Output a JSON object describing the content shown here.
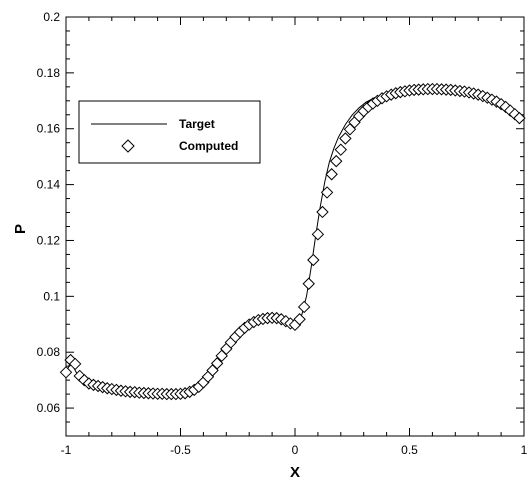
{
  "chart_data": {
    "type": "line",
    "title": "",
    "xlabel": "X",
    "ylabel": "P",
    "xlim": [
      -1,
      1
    ],
    "ylim": [
      0.05,
      0.2
    ],
    "xticks": [
      "-1",
      "-0.5",
      "0",
      "0.5",
      "1"
    ],
    "yticks": [
      "0.06",
      "0.08",
      "0.1",
      "0.12",
      "0.14",
      "0.16",
      "0.18",
      "0.2"
    ],
    "grid": false,
    "legend": {
      "placement": "upper-left",
      "box": true
    },
    "series": [
      {
        "name": "Target",
        "style": "line",
        "color": "#000000",
        "points": [
          [
            -1.0,
            0.0725
          ],
          [
            -0.98,
            0.0765
          ],
          [
            -0.96,
            0.0735
          ],
          [
            -0.94,
            0.0705
          ],
          [
            -0.92,
            0.069
          ],
          [
            -0.9,
            0.0682
          ],
          [
            -0.85,
            0.0672
          ],
          [
            -0.8,
            0.0665
          ],
          [
            -0.75,
            0.066
          ],
          [
            -0.7,
            0.0656
          ],
          [
            -0.65,
            0.0653
          ],
          [
            -0.6,
            0.0651
          ],
          [
            -0.55,
            0.065
          ],
          [
            -0.5,
            0.0651
          ],
          [
            -0.47,
            0.0655
          ],
          [
            -0.44,
            0.0665
          ],
          [
            -0.41,
            0.0685
          ],
          [
            -0.38,
            0.0715
          ],
          [
            -0.35,
            0.075
          ],
          [
            -0.32,
            0.079
          ],
          [
            -0.29,
            0.0825
          ],
          [
            -0.26,
            0.0858
          ],
          [
            -0.23,
            0.0882
          ],
          [
            -0.2,
            0.09
          ],
          [
            -0.17,
            0.0912
          ],
          [
            -0.14,
            0.092
          ],
          [
            -0.11,
            0.0923
          ],
          [
            -0.08,
            0.0922
          ],
          [
            -0.05,
            0.0916
          ],
          [
            -0.03,
            0.0908
          ],
          [
            -0.01,
            0.0902
          ],
          [
            0.01,
            0.0907
          ],
          [
            0.03,
            0.0935
          ],
          [
            0.05,
            0.1
          ],
          [
            0.07,
            0.11
          ],
          [
            0.09,
            0.1215
          ],
          [
            0.11,
            0.132
          ],
          [
            0.13,
            0.141
          ],
          [
            0.15,
            0.148
          ],
          [
            0.17,
            0.153
          ],
          [
            0.19,
            0.157
          ],
          [
            0.22,
            0.1615
          ],
          [
            0.25,
            0.165
          ],
          [
            0.28,
            0.1675
          ],
          [
            0.31,
            0.1695
          ],
          [
            0.35,
            0.1712
          ],
          [
            0.4,
            0.1725
          ],
          [
            0.45,
            0.1733
          ],
          [
            0.5,
            0.1738
          ],
          [
            0.55,
            0.1741
          ],
          [
            0.6,
            0.1742
          ],
          [
            0.65,
            0.1741
          ],
          [
            0.7,
            0.1738
          ],
          [
            0.75,
            0.1733
          ],
          [
            0.8,
            0.1725
          ],
          [
            0.85,
            0.1713
          ],
          [
            0.9,
            0.1695
          ],
          [
            0.95,
            0.1668
          ],
          [
            0.98,
            0.164
          ]
        ]
      },
      {
        "name": "Computed",
        "style": "diamond-marker",
        "color": "#000000",
        "points": [
          [
            -1.0,
            0.0728
          ],
          [
            -0.98,
            0.0772
          ],
          [
            -0.96,
            0.0758
          ],
          [
            -0.94,
            0.0715
          ],
          [
            -0.92,
            0.07
          ],
          [
            -0.9,
            0.0688
          ],
          [
            -0.88,
            0.0683
          ],
          [
            -0.86,
            0.0679
          ],
          [
            -0.84,
            0.0675
          ],
          [
            -0.82,
            0.0671
          ],
          [
            -0.8,
            0.0668
          ],
          [
            -0.78,
            0.0665
          ],
          [
            -0.76,
            0.0662
          ],
          [
            -0.74,
            0.066
          ],
          [
            -0.72,
            0.0658
          ],
          [
            -0.7,
            0.0657
          ],
          [
            -0.68,
            0.0655
          ],
          [
            -0.66,
            0.0654
          ],
          [
            -0.64,
            0.0653
          ],
          [
            -0.62,
            0.0652
          ],
          [
            -0.6,
            0.0651
          ],
          [
            -0.58,
            0.0651
          ],
          [
            -0.56,
            0.065
          ],
          [
            -0.54,
            0.065
          ],
          [
            -0.52,
            0.065
          ],
          [
            -0.5,
            0.0651
          ],
          [
            -0.48,
            0.0653
          ],
          [
            -0.46,
            0.0658
          ],
          [
            -0.44,
            0.0665
          ],
          [
            -0.42,
            0.0676
          ],
          [
            -0.4,
            0.0692
          ],
          [
            -0.38,
            0.0712
          ],
          [
            -0.36,
            0.0735
          ],
          [
            -0.34,
            0.076
          ],
          [
            -0.32,
            0.0787
          ],
          [
            -0.3,
            0.0812
          ],
          [
            -0.28,
            0.0835
          ],
          [
            -0.26,
            0.0855
          ],
          [
            -0.24,
            0.0872
          ],
          [
            -0.22,
            0.0887
          ],
          [
            -0.2,
            0.0899
          ],
          [
            -0.18,
            0.0908
          ],
          [
            -0.16,
            0.0915
          ],
          [
            -0.14,
            0.0919
          ],
          [
            -0.12,
            0.0922
          ],
          [
            -0.1,
            0.0923
          ],
          [
            -0.08,
            0.0922
          ],
          [
            -0.06,
            0.0918
          ],
          [
            -0.04,
            0.0911
          ],
          [
            -0.02,
            0.0903
          ],
          [
            0.0,
            0.0898
          ],
          [
            0.02,
            0.0918
          ],
          [
            0.04,
            0.0962
          ],
          [
            0.06,
            0.1045
          ],
          [
            0.08,
            0.113
          ],
          [
            0.1,
            0.1222
          ],
          [
            0.12,
            0.1302
          ],
          [
            0.14,
            0.1372
          ],
          [
            0.16,
            0.1437
          ],
          [
            0.18,
            0.1484
          ],
          [
            0.2,
            0.1525
          ],
          [
            0.22,
            0.1565
          ],
          [
            0.24,
            0.1598
          ],
          [
            0.26,
            0.1623
          ],
          [
            0.28,
            0.1645
          ],
          [
            0.3,
            0.1663
          ],
          [
            0.32,
            0.1678
          ],
          [
            0.34,
            0.169
          ],
          [
            0.36,
            0.17
          ],
          [
            0.38,
            0.1709
          ],
          [
            0.4,
            0.1716
          ],
          [
            0.42,
            0.1722
          ],
          [
            0.44,
            0.1727
          ],
          [
            0.46,
            0.1731
          ],
          [
            0.48,
            0.1734
          ],
          [
            0.5,
            0.1737
          ],
          [
            0.52,
            0.1739
          ],
          [
            0.54,
            0.174
          ],
          [
            0.56,
            0.1741
          ],
          [
            0.58,
            0.1742
          ],
          [
            0.6,
            0.1742
          ],
          [
            0.62,
            0.1742
          ],
          [
            0.64,
            0.1741
          ],
          [
            0.66,
            0.174
          ],
          [
            0.68,
            0.1739
          ],
          [
            0.7,
            0.1737
          ],
          [
            0.72,
            0.1735
          ],
          [
            0.74,
            0.1733
          ],
          [
            0.76,
            0.173
          ],
          [
            0.78,
            0.1726
          ],
          [
            0.8,
            0.1722
          ],
          [
            0.82,
            0.1717
          ],
          [
            0.84,
            0.1711
          ],
          [
            0.86,
            0.1704
          ],
          [
            0.88,
            0.1697
          ],
          [
            0.9,
            0.1688
          ],
          [
            0.92,
            0.1678
          ],
          [
            0.94,
            0.1665
          ],
          [
            0.96,
            0.1652
          ],
          [
            0.98,
            0.1638
          ]
        ]
      }
    ]
  }
}
